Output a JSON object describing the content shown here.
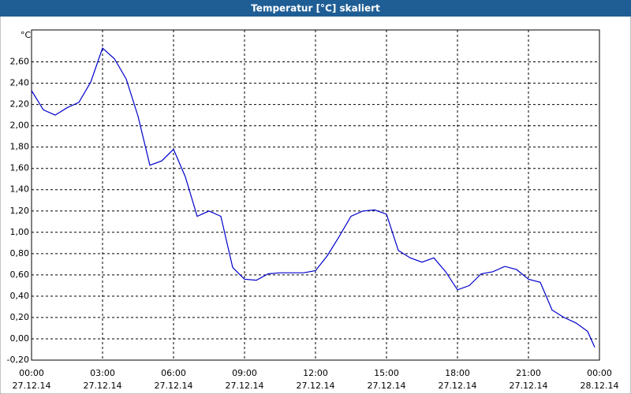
{
  "chart_data": {
    "type": "line",
    "title": "Temperatur [°C] skaliert",
    "y_unit": "°C",
    "x": [
      0,
      0.5,
      1,
      1.5,
      2,
      2.5,
      3,
      3.5,
      4,
      4.5,
      5,
      5.5,
      6,
      6.5,
      7,
      7.5,
      8,
      8.5,
      9,
      9.5,
      10,
      10.5,
      11,
      11.5,
      12,
      12.5,
      13,
      13.5,
      14,
      14.5,
      15,
      15.5,
      16,
      16.5,
      17,
      17.5,
      18,
      18.5,
      19,
      19.5,
      20,
      20.5,
      21,
      21.5,
      22,
      22.5,
      23,
      23.5,
      23.8
    ],
    "series": [
      {
        "color": "#0000cc",
        "values": [
          2.33,
          2.15,
          2.1,
          2.17,
          2.22,
          2.41,
          2.73,
          2.63,
          2.44,
          2.09,
          1.63,
          1.67,
          1.78,
          1.52,
          1.15,
          1.2,
          1.15,
          0.67,
          0.56,
          0.55,
          0.61,
          0.62,
          0.62,
          0.62,
          0.64,
          0.78,
          0.96,
          1.15,
          1.2,
          1.21,
          1.17,
          0.83,
          0.76,
          0.72,
          0.76,
          0.63,
          0.46,
          0.5,
          0.61,
          0.63,
          0.68,
          0.65,
          0.56,
          0.53,
          0.27,
          0.2,
          0.15,
          0.07,
          -0.08
        ]
      }
    ],
    "xlim": [
      0,
      24
    ],
    "xticks": [
      {
        "value": 0,
        "label": "00:00",
        "date": "27.12.14"
      },
      {
        "value": 3,
        "label": "03:00",
        "date": "27.12.14"
      },
      {
        "value": 6,
        "label": "06:00",
        "date": "27.12.14"
      },
      {
        "value": 9,
        "label": "09:00",
        "date": "27.12.14"
      },
      {
        "value": 12,
        "label": "12:00",
        "date": "27.12.14"
      },
      {
        "value": 15,
        "label": "15:00",
        "date": "27.12.14"
      },
      {
        "value": 18,
        "label": "18:00",
        "date": "27.12.14"
      },
      {
        "value": 21,
        "label": "21:00",
        "date": "27.12.14"
      },
      {
        "value": 24,
        "label": "00:00",
        "date": "28.12.14"
      }
    ],
    "ylim": [
      -0.2,
      2.9
    ],
    "yticks": [
      {
        "value": -0.2,
        "label": "-0,20"
      },
      {
        "value": 0,
        "label": "0,00"
      },
      {
        "value": 0.2,
        "label": "0,20"
      },
      {
        "value": 0.4,
        "label": "0,40"
      },
      {
        "value": 0.6,
        "label": "0,60"
      },
      {
        "value": 0.8,
        "label": "0,80"
      },
      {
        "value": 1.0,
        "label": "1,00"
      },
      {
        "value": 1.2,
        "label": "1,20"
      },
      {
        "value": 1.4,
        "label": "1,40"
      },
      {
        "value": 1.6,
        "label": "1,60"
      },
      {
        "value": 1.8,
        "label": "1,80"
      },
      {
        "value": 2.0,
        "label": "2,00"
      },
      {
        "value": 2.2,
        "label": "2,20"
      },
      {
        "value": 2.4,
        "label": "2,40"
      },
      {
        "value": 2.6,
        "label": "2,60"
      }
    ],
    "grid": true
  }
}
